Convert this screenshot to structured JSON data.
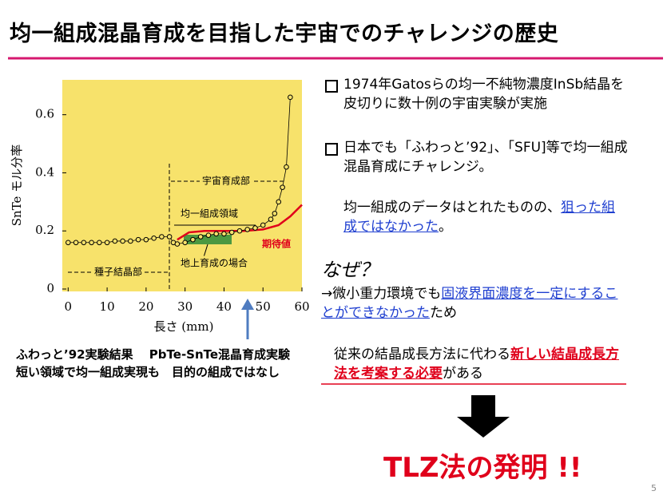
{
  "title": "均一組成混晶育成を目指した宇宙でのチャレンジの歴史",
  "figure": {
    "type": "scatter",
    "x_label": "長さ (mm)",
    "y_label": "SnTe モル分率",
    "xlim": [
      -1.5,
      60
    ],
    "ylim": [
      0,
      0.72
    ],
    "xticks": [
      0,
      10,
      20,
      30,
      40,
      50,
      60
    ],
    "yticks": [
      0,
      0.2,
      0.4,
      0.6
    ],
    "background": "#f7e26b",
    "x": [
      0,
      2,
      4,
      6,
      8,
      10,
      12,
      14,
      16,
      18,
      20,
      22,
      24,
      26,
      27,
      28,
      30,
      32,
      34,
      36,
      38,
      40,
      42,
      44,
      46,
      48,
      50,
      52,
      53,
      54,
      55,
      56,
      57
    ],
    "values": [
      0.16,
      0.16,
      0.16,
      0.16,
      0.16,
      0.16,
      0.165,
      0.165,
      0.165,
      0.17,
      0.17,
      0.175,
      0.18,
      0.18,
      0.16,
      0.155,
      0.16,
      0.17,
      0.18,
      0.185,
      0.19,
      0.19,
      0.195,
      0.2,
      0.205,
      0.21,
      0.22,
      0.24,
      0.26,
      0.3,
      0.35,
      0.42,
      0.66
    ],
    "expected": {
      "color": "#e0001b",
      "x": [
        28,
        31,
        35,
        40,
        45,
        50,
        54,
        57,
        60
      ],
      "values": [
        0.17,
        0.195,
        0.2,
        0.2,
        0.2,
        0.205,
        0.22,
        0.25,
        0.29
      ]
    },
    "annotations": [
      "宇宙育成部",
      "均一組成領域",
      "種子結晶部",
      "地上育成の場合",
      "期待値"
    ]
  },
  "caption": "ふわっと’92実験結果　 PbTe-SnTe混晶育成実験　短い領域で均一組成実現も　目的の組成ではなし",
  "bullets": [
    "1974年Gatosらの均一不純物濃度InSb結晶を皮切りに数十例の宇宙実験が実施",
    "日本でも「ふわっと’92」、「SFU]等で均一組成混晶育成にチャレンジ。"
  ],
  "note": [
    "均一組成のデータはとれたものの、",
    "狙った組成ではなかった",
    "。"
  ],
  "why": "なぜ？",
  "reason": [
    "→微小重力環境でも",
    "固液界面濃度を一定にすることができなかった",
    "ため"
  ],
  "need": [
    "従来の結晶成長方法に代わる",
    "新しい結晶成長方法を考案する必要",
    "がある"
  ],
  "conclusion": "TLZ法の発明 !!",
  "page_number": "5"
}
